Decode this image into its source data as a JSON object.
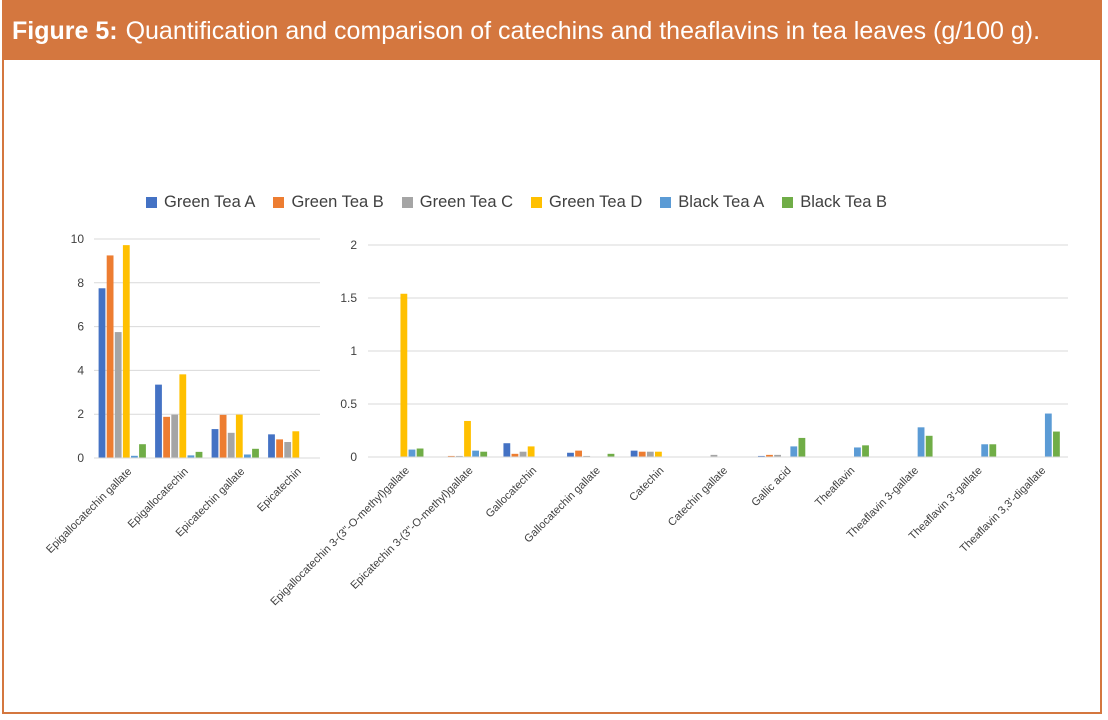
{
  "figure": {
    "label": "Figure 5:",
    "title": "Quantification and comparison of catechins and theaflavins in tea leaves (g/100 g)."
  },
  "colors": {
    "accent": "#d4773f",
    "series": [
      "#4472c4",
      "#ed7d31",
      "#a5a5a5",
      "#ffc000",
      "#5b9bd5",
      "#70ad47"
    ]
  },
  "legend": [
    "Green Tea A",
    "Green Tea B",
    "Green Tea C",
    "Green Tea D",
    "Black Tea A",
    "Black Tea B"
  ],
  "chart_data": [
    {
      "type": "bar",
      "title": "",
      "xlabel": "",
      "ylabel": "",
      "ylim": [
        0,
        10
      ],
      "yticks": [
        0,
        2,
        4,
        6,
        8,
        10
      ],
      "grid": true,
      "categories": [
        "Epigallocatechin gallate",
        "Epigallocatechin",
        "Epicatechin gallate",
        "Epicatechin"
      ],
      "series": [
        {
          "name": "Green Tea A",
          "values": [
            7.75,
            3.35,
            1.32,
            1.08
          ]
        },
        {
          "name": "Green Tea B",
          "values": [
            9.25,
            1.88,
            1.97,
            0.85
          ]
        },
        {
          "name": "Green Tea C",
          "values": [
            5.75,
            1.98,
            1.15,
            0.73
          ]
        },
        {
          "name": "Green Tea D",
          "values": [
            9.72,
            3.82,
            1.98,
            1.22
          ]
        },
        {
          "name": "Black Tea A",
          "values": [
            0.1,
            0.12,
            0.16,
            0.0
          ]
        },
        {
          "name": "Black Tea B",
          "values": [
            0.63,
            0.28,
            0.42,
            0.0
          ]
        }
      ]
    },
    {
      "type": "bar",
      "title": "",
      "xlabel": "",
      "ylabel": "",
      "ylim": [
        0,
        2
      ],
      "yticks": [
        0,
        0.5,
        1,
        1.5,
        2
      ],
      "ytick_labels": [
        "0",
        "0.5",
        "1",
        "1.5",
        "2"
      ],
      "grid": true,
      "categories": [
        "Epigallocatechin 3-(3\"-O-methyl)gallate",
        "Epicatechin 3-(3\"-O-methyl)gallate",
        "Gallocatechin",
        "Gallocatechin gallate",
        "Catechin",
        "Catechin gallate",
        "Gallic acid",
        "Theaflavin",
        "Theaflavin 3-gallate",
        "Theaflavin 3'-gallate",
        "Theaflavin 3,3'-digallate"
      ],
      "series": [
        {
          "name": "Green Tea A",
          "values": [
            0,
            0,
            0.13,
            0.04,
            0.06,
            0,
            0.01,
            0,
            0,
            0,
            0
          ]
        },
        {
          "name": "Green Tea B",
          "values": [
            0,
            0.01,
            0.03,
            0.06,
            0.05,
            0,
            0.02,
            0,
            0,
            0,
            0
          ]
        },
        {
          "name": "Green Tea C",
          "values": [
            0,
            0.01,
            0.05,
            0.01,
            0.05,
            0.02,
            0.02,
            0,
            0,
            0,
            0
          ]
        },
        {
          "name": "Green Tea D",
          "values": [
            1.54,
            0.34,
            0.1,
            0,
            0.05,
            0,
            0,
            0,
            0,
            0,
            0
          ]
        },
        {
          "name": "Black Tea A",
          "values": [
            0.07,
            0.06,
            0,
            0,
            0,
            0,
            0.1,
            0.09,
            0.28,
            0.12,
            0.41
          ]
        },
        {
          "name": "Black Tea B",
          "values": [
            0.08,
            0.05,
            0,
            0.03,
            0,
            0,
            0.18,
            0.11,
            0.2,
            0.12,
            0.24
          ]
        }
      ]
    }
  ]
}
